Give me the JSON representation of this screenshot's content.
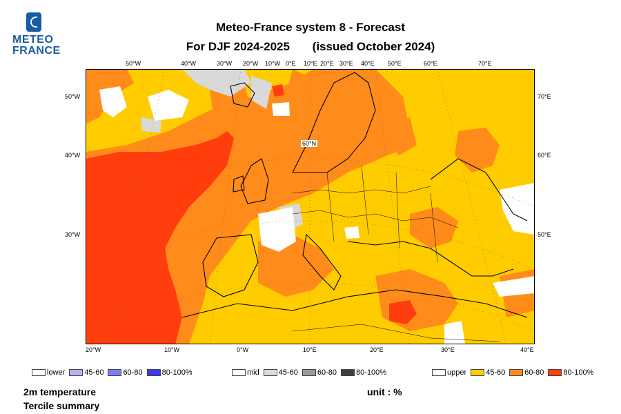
{
  "logo": {
    "line1": "METEO",
    "line2": "FRANCE"
  },
  "title": {
    "line1": "Meteo-France system 8  -  Forecast",
    "line2a": "For DJF 2024-2025",
    "line2b": "(issued October 2024)"
  },
  "map": {
    "top_lon_labels": [
      "50°W",
      "40°W",
      "30°W",
      "20°W",
      "10°W",
      "0°E",
      "10°E",
      "20°E",
      "30°E",
      "40°E",
      "50°E",
      "60°E",
      "70°E"
    ],
    "bottom_lon_labels": [
      "20°W",
      "10°W",
      "0°W",
      "10°E",
      "20°E",
      "30°E",
      "40°E"
    ],
    "left_lat_labels": [
      "50°W",
      "40°W",
      "30°W"
    ],
    "right_lat_labels": [
      "70°E",
      "60°E",
      "50°E"
    ],
    "inner_label": "60°N"
  },
  "legend": {
    "lower": {
      "label": "lower",
      "items": [
        {
          "label": "45-60",
          "color": "#b3b3f5"
        },
        {
          "label": "60-80",
          "color": "#7c7cf0"
        },
        {
          "label": "80-100%",
          "color": "#3a3ae8"
        }
      ]
    },
    "mid": {
      "label": "mid",
      "items": [
        {
          "label": "45-60",
          "color": "#d9d9d9"
        },
        {
          "label": "60-80",
          "color": "#9a9a9a"
        },
        {
          "label": "80-100%",
          "color": "#3f3f3f"
        }
      ]
    },
    "upper": {
      "label": "upper",
      "items": [
        {
          "label": "45-60",
          "color": "#ffcc00"
        },
        {
          "label": "60-80",
          "color": "#ff8c1a"
        },
        {
          "label": "80-100%",
          "color": "#ff3d0d"
        }
      ]
    }
  },
  "footer": {
    "variable": "2m temperature",
    "summary": "Tercile summary",
    "unit": "unit : %"
  }
}
